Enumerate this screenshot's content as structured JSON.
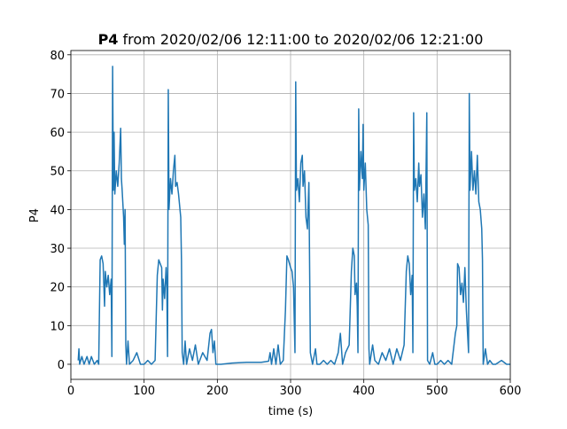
{
  "chart_data": {
    "type": "line",
    "title": [
      "P4",
      "from 2020/02/06 12:11:00 to 2020/02/06 12:21:00"
    ],
    "x_label": "time (s)",
    "y_label": "P4",
    "xlim": [
      0,
      600
    ],
    "xticks": [
      0,
      100,
      200,
      300,
      400,
      500,
      600
    ],
    "ylim": [
      -3.9,
      81.1
    ],
    "yticks": [
      0,
      10,
      20,
      30,
      40,
      50,
      60,
      70,
      80
    ],
    "grid": true,
    "series": [
      {
        "color": "#1f77b4",
        "x": [
          10,
          11,
          12,
          15,
          18,
          22,
          25,
          28,
          32,
          36,
          38,
          40,
          42,
          44,
          46,
          47,
          49,
          51,
          53,
          55,
          56,
          57,
          58,
          59,
          60,
          62,
          64,
          66,
          68,
          69,
          70,
          72,
          73,
          74,
          75,
          76,
          78,
          80,
          85,
          90,
          95,
          100,
          105,
          110,
          115,
          118,
          120,
          122,
          124,
          125,
          126,
          128,
          130,
          131,
          132,
          133,
          134,
          136,
          138,
          140,
          142,
          143,
          145,
          147,
          148,
          150,
          151,
          152,
          154,
          156,
          158,
          162,
          166,
          170,
          174,
          180,
          186,
          190,
          192,
          194,
          196,
          198,
          205,
          220,
          240,
          260,
          270,
          272,
          274,
          277,
          280,
          283,
          286,
          290,
          293,
          295,
          297,
          300,
          302,
          304,
          306,
          307,
          308,
          310,
          312,
          314,
          316,
          317,
          319,
          321,
          323,
          325,
          327,
          330,
          334,
          336,
          340,
          345,
          350,
          355,
          360,
          365,
          368,
          371,
          375,
          380,
          383,
          385,
          387,
          388,
          390,
          391,
          392,
          393,
          394,
          396,
          398,
          399,
          400,
          402,
          404,
          406,
          407,
          408,
          412,
          415,
          420,
          425,
          430,
          435,
          440,
          445,
          450,
          455,
          458,
          460,
          462,
          464,
          466,
          467,
          468,
          469,
          471,
          473,
          475,
          476,
          478,
          480,
          482,
          484,
          486,
          487,
          490,
          494,
          497,
          500,
          505,
          510,
          515,
          520,
          525,
          527,
          528,
          530,
          532,
          534,
          536,
          538,
          540,
          543,
          544,
          545,
          547,
          549,
          551,
          553,
          555,
          557,
          559,
          561,
          562,
          563,
          566,
          569,
          572,
          576,
          580,
          588,
          595,
          600
        ],
        "values": [
          1,
          4,
          0,
          2,
          0,
          2,
          0,
          2,
          0,
          1,
          0,
          27,
          28,
          26,
          15,
          24,
          20,
          23,
          18,
          22,
          2,
          77,
          45,
          60,
          44,
          50,
          46,
          52,
          61,
          48,
          45,
          38,
          31,
          40,
          5,
          0,
          6,
          0,
          1,
          3,
          0,
          0,
          1,
          0,
          1,
          23,
          27,
          26,
          25,
          14,
          22,
          17,
          25,
          20,
          2,
          71,
          40,
          48,
          44,
          50,
          54,
          46,
          47,
          44,
          42,
          38,
          27,
          3,
          0,
          6,
          0,
          4,
          1,
          5,
          0,
          3,
          1,
          8,
          9,
          3,
          6,
          0,
          0,
          0.3,
          0.5,
          0.5,
          0.8,
          3,
          0,
          4,
          0,
          5,
          0,
          1,
          14,
          28,
          27,
          25,
          24,
          20,
          3,
          73,
          45,
          48,
          42,
          52,
          54,
          46,
          50,
          38,
          35,
          47,
          3,
          0,
          4,
          0,
          0,
          1,
          0,
          1,
          0,
          3,
          8,
          0,
          3,
          5,
          24,
          30,
          28,
          18,
          21,
          15,
          3,
          66,
          45,
          55,
          48,
          62,
          45,
          52,
          40,
          36,
          4,
          0,
          5,
          1,
          0,
          3,
          1,
          4,
          0,
          4,
          1,
          5,
          24,
          28,
          26,
          18,
          23,
          3,
          65,
          45,
          48,
          42,
          52,
          46,
          49,
          38,
          44,
          35,
          65,
          1,
          0,
          3,
          0,
          0,
          1,
          0,
          1,
          0,
          8,
          10,
          26,
          25,
          18,
          21,
          16,
          25,
          14,
          3,
          70,
          45,
          55,
          45,
          50,
          44,
          54,
          42,
          40,
          35,
          27,
          0,
          4,
          0,
          1,
          0,
          0,
          1,
          0,
          0
        ]
      }
    ]
  }
}
